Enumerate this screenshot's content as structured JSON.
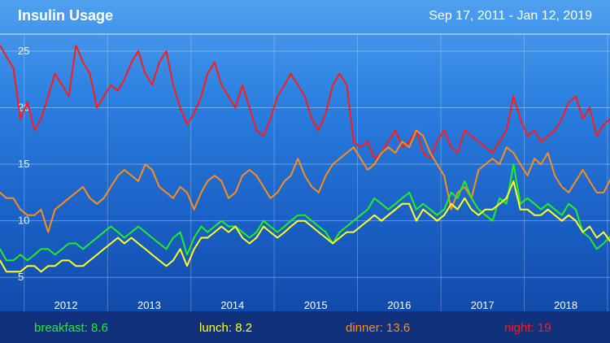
{
  "header": {
    "title": "Insulin Usage",
    "date_range": "Sep 17, 2011 - Jan 12, 2019"
  },
  "legend": {
    "breakfast": "breakfast: 8.6",
    "lunch": "lunch: 8.2",
    "dinner": "dinner: 13.6",
    "night": "night: 19"
  },
  "colors": {
    "breakfast": "#22ee22",
    "lunch": "#ffff22",
    "dinner": "#ff8c1a",
    "night": "#ff1a1a",
    "grid": "#ffffff"
  },
  "chart_data": {
    "type": "line",
    "title": "Insulin Usage",
    "xlim": [
      "2011-09-17",
      "2019-01-12"
    ],
    "ylim": [
      2,
      26.5
    ],
    "y_ticks": [
      "5",
      "10",
      "15",
      "20",
      "25"
    ],
    "x_ticks": [
      "2012",
      "2013",
      "2014",
      "2015",
      "2016",
      "2017",
      "2018"
    ],
    "grid": true,
    "legend_position": "bottom",
    "series": [
      {
        "name": "night",
        "x": [
          "2011-09-17",
          "2011-10-15",
          "2011-11-15",
          "2011-12-15",
          "2012-01-15",
          "2012-02-15",
          "2012-03-15",
          "2012-04-15",
          "2012-05-15",
          "2012-06-15",
          "2012-07-15",
          "2012-08-15",
          "2012-09-15",
          "2012-10-15",
          "2012-11-15",
          "2012-12-15",
          "2013-01-15",
          "2013-02-15",
          "2013-03-15",
          "2013-04-15",
          "2013-05-15",
          "2013-06-15",
          "2013-07-15",
          "2013-08-15",
          "2013-09-15",
          "2013-10-15",
          "2013-11-15",
          "2013-12-15",
          "2014-01-15",
          "2014-02-15",
          "2014-03-15",
          "2014-04-15",
          "2014-05-15",
          "2014-06-15",
          "2014-07-15",
          "2014-08-15",
          "2014-09-15",
          "2014-10-15",
          "2014-11-15",
          "2014-12-15",
          "2015-01-15",
          "2015-02-15",
          "2015-03-15",
          "2015-04-15",
          "2015-05-15",
          "2015-06-15",
          "2015-07-15",
          "2015-08-15",
          "2015-09-15",
          "2015-10-15",
          "2015-11-15",
          "2015-12-15",
          "2016-01-15",
          "2016-02-15",
          "2016-03-15",
          "2016-04-15",
          "2016-05-15",
          "2016-06-15",
          "2016-07-15",
          "2016-08-15",
          "2016-09-15",
          "2016-10-15",
          "2016-11-15",
          "2016-12-15",
          "2017-01-15",
          "2017-02-15",
          "2017-03-15",
          "2017-04-15",
          "2017-05-15",
          "2017-06-15",
          "2017-07-15",
          "2017-08-15",
          "2017-09-15",
          "2017-10-15",
          "2017-11-15",
          "2017-12-15",
          "2018-01-15",
          "2018-02-15",
          "2018-03-15",
          "2018-04-15",
          "2018-05-15",
          "2018-06-15",
          "2018-07-15",
          "2018-08-15",
          "2018-09-15",
          "2018-10-15",
          "2018-11-15",
          "2018-12-15",
          "2019-01-12"
        ],
        "y": [
          25.5,
          24.5,
          23.5,
          19,
          20.5,
          18,
          19,
          21,
          23,
          22,
          21,
          25.5,
          24,
          23,
          20,
          21,
          22,
          21.5,
          22.5,
          24,
          25,
          23,
          22,
          24,
          25,
          22,
          20,
          18.5,
          19.5,
          21,
          23,
          24,
          22,
          21,
          20,
          22,
          20,
          18,
          17.5,
          19,
          21,
          22,
          23,
          22,
          21,
          19,
          18,
          19.5,
          22,
          23,
          22,
          17,
          16.5,
          17,
          15.5,
          16,
          17,
          18,
          16.5,
          17,
          18,
          16,
          15.5,
          17,
          18,
          16.5,
          16,
          18,
          17.5,
          17,
          16.5,
          16,
          17,
          18,
          21,
          19,
          17.5,
          18,
          17,
          17.5,
          18,
          19,
          20.5,
          21,
          19,
          20,
          17.5,
          18.5,
          19
        ]
      },
      {
        "name": "dinner",
        "x": [
          "2011-09-17",
          "2011-10-15",
          "2011-11-15",
          "2011-12-15",
          "2012-01-15",
          "2012-02-15",
          "2012-03-15",
          "2012-04-15",
          "2012-05-15",
          "2012-06-15",
          "2012-07-15",
          "2012-08-15",
          "2012-09-15",
          "2012-10-15",
          "2012-11-15",
          "2012-12-15",
          "2013-01-15",
          "2013-02-15",
          "2013-03-15",
          "2013-04-15",
          "2013-05-15",
          "2013-06-15",
          "2013-07-15",
          "2013-08-15",
          "2013-09-15",
          "2013-10-15",
          "2013-11-15",
          "2013-12-15",
          "2014-01-15",
          "2014-02-15",
          "2014-03-15",
          "2014-04-15",
          "2014-05-15",
          "2014-06-15",
          "2014-07-15",
          "2014-08-15",
          "2014-09-15",
          "2014-10-15",
          "2014-11-15",
          "2014-12-15",
          "2015-01-15",
          "2015-02-15",
          "2015-03-15",
          "2015-04-15",
          "2015-05-15",
          "2015-06-15",
          "2015-07-15",
          "2015-08-15",
          "2015-09-15",
          "2015-10-15",
          "2015-11-15",
          "2015-12-15",
          "2016-01-15",
          "2016-02-15",
          "2016-03-15",
          "2016-04-15",
          "2016-05-15",
          "2016-06-15",
          "2016-07-15",
          "2016-08-15",
          "2016-09-15",
          "2016-10-15",
          "2016-11-15",
          "2016-12-15",
          "2017-01-15",
          "2017-02-15",
          "2017-03-15",
          "2017-04-15",
          "2017-05-15",
          "2017-06-15",
          "2017-07-15",
          "2017-08-15",
          "2017-09-15",
          "2017-10-15",
          "2017-11-15",
          "2017-12-15",
          "2018-01-15",
          "2018-02-15",
          "2018-03-15",
          "2018-04-15",
          "2018-05-15",
          "2018-06-15",
          "2018-07-15",
          "2018-08-15",
          "2018-09-15",
          "2018-10-15",
          "2018-11-15",
          "2018-12-15",
          "2019-01-12"
        ],
        "y": [
          12.5,
          12,
          12,
          11,
          10.5,
          10.5,
          11,
          9,
          11,
          11.5,
          12,
          12.5,
          13,
          12,
          11.5,
          12,
          13,
          14,
          14.5,
          14,
          13.5,
          15,
          14.5,
          13,
          12.5,
          12,
          13,
          12.5,
          11,
          12.5,
          13.5,
          14,
          13.5,
          12,
          12.5,
          14,
          14.5,
          14,
          13,
          12,
          12.5,
          13.5,
          14,
          15.5,
          14,
          13,
          12.5,
          14,
          15,
          15.5,
          16,
          16.5,
          15.5,
          14.5,
          15,
          16,
          16.5,
          16,
          17,
          16.5,
          18,
          17.5,
          16,
          15,
          14,
          11,
          12.5,
          13,
          12,
          14.5,
          15,
          15.5,
          15,
          16.5,
          16,
          15,
          14,
          15.5,
          15,
          16,
          14,
          13,
          12.5,
          13.5,
          14.5,
          13.5,
          12.5,
          12.5,
          13.6
        ]
      },
      {
        "name": "breakfast",
        "x": [
          "2011-09-17",
          "2011-10-15",
          "2011-11-15",
          "2011-12-15",
          "2012-01-15",
          "2012-02-15",
          "2012-03-15",
          "2012-04-15",
          "2012-05-15",
          "2012-06-15",
          "2012-07-15",
          "2012-08-15",
          "2012-09-15",
          "2012-10-15",
          "2012-11-15",
          "2012-12-15",
          "2013-01-15",
          "2013-02-15",
          "2013-03-15",
          "2013-04-15",
          "2013-05-15",
          "2013-06-15",
          "2013-07-15",
          "2013-08-15",
          "2013-09-15",
          "2013-10-15",
          "2013-11-15",
          "2013-12-15",
          "2014-01-15",
          "2014-02-15",
          "2014-03-15",
          "2014-04-15",
          "2014-05-15",
          "2014-06-15",
          "2014-07-15",
          "2014-08-15",
          "2014-09-15",
          "2014-10-15",
          "2014-11-15",
          "2014-12-15",
          "2015-01-15",
          "2015-02-15",
          "2015-03-15",
          "2015-04-15",
          "2015-05-15",
          "2015-06-15",
          "2015-07-15",
          "2015-08-15",
          "2015-09-15",
          "2015-10-15",
          "2015-11-15",
          "2015-12-15",
          "2016-01-15",
          "2016-02-15",
          "2016-03-15",
          "2016-04-15",
          "2016-05-15",
          "2016-06-15",
          "2016-07-15",
          "2016-08-15",
          "2016-09-15",
          "2016-10-15",
          "2016-11-15",
          "2016-12-15",
          "2017-01-15",
          "2017-02-15",
          "2017-03-15",
          "2017-04-15",
          "2017-05-15",
          "2017-06-15",
          "2017-07-15",
          "2017-08-15",
          "2017-09-15",
          "2017-10-15",
          "2017-11-15",
          "2017-12-15",
          "2018-01-15",
          "2018-02-15",
          "2018-03-15",
          "2018-04-15",
          "2018-05-15",
          "2018-06-15",
          "2018-07-15",
          "2018-08-15",
          "2018-09-15",
          "2018-10-15",
          "2018-11-15",
          "2018-12-15",
          "2019-01-12"
        ],
        "y": [
          7.5,
          6.5,
          6.5,
          7,
          6.5,
          7,
          7.5,
          7.5,
          7,
          7.5,
          8,
          8,
          7.5,
          8,
          8.5,
          9,
          9.5,
          9,
          8.5,
          9,
          9.5,
          9,
          8.5,
          8,
          7.5,
          8.5,
          9,
          7,
          8.5,
          9.5,
          9,
          9.5,
          10,
          9.5,
          9.5,
          9,
          8.5,
          9,
          10,
          9.5,
          9,
          9.5,
          10,
          10.5,
          10.5,
          10,
          9.5,
          9,
          8,
          9,
          9.5,
          10,
          10.5,
          11,
          12,
          11.5,
          11,
          11.5,
          12,
          12.5,
          11,
          11.5,
          11,
          10.5,
          11,
          12.5,
          12,
          13.5,
          12,
          11,
          10.5,
          10,
          12,
          11.5,
          15,
          11.5,
          12,
          11.5,
          11,
          11.5,
          11,
          10.5,
          11.5,
          11,
          9,
          8.5,
          7.5,
          8,
          8.6
        ]
      },
      {
        "name": "lunch",
        "x": [
          "2011-09-17",
          "2011-10-15",
          "2011-11-15",
          "2011-12-15",
          "2012-01-15",
          "2012-02-15",
          "2012-03-15",
          "2012-04-15",
          "2012-05-15",
          "2012-06-15",
          "2012-07-15",
          "2012-08-15",
          "2012-09-15",
          "2012-10-15",
          "2012-11-15",
          "2012-12-15",
          "2013-01-15",
          "2013-02-15",
          "2013-03-15",
          "2013-04-15",
          "2013-05-15",
          "2013-06-15",
          "2013-07-15",
          "2013-08-15",
          "2013-09-15",
          "2013-10-15",
          "2013-11-15",
          "2013-12-15",
          "2014-01-15",
          "2014-02-15",
          "2014-03-15",
          "2014-04-15",
          "2014-05-15",
          "2014-06-15",
          "2014-07-15",
          "2014-08-15",
          "2014-09-15",
          "2014-10-15",
          "2014-11-15",
          "2014-12-15",
          "2015-01-15",
          "2015-02-15",
          "2015-03-15",
          "2015-04-15",
          "2015-05-15",
          "2015-06-15",
          "2015-07-15",
          "2015-08-15",
          "2015-09-15",
          "2015-10-15",
          "2015-11-15",
          "2015-12-15",
          "2016-01-15",
          "2016-02-15",
          "2016-03-15",
          "2016-04-15",
          "2016-05-15",
          "2016-06-15",
          "2016-07-15",
          "2016-08-15",
          "2016-09-15",
          "2016-10-15",
          "2016-11-15",
          "2016-12-15",
          "2017-01-15",
          "2017-02-15",
          "2017-03-15",
          "2017-04-15",
          "2017-05-15",
          "2017-06-15",
          "2017-07-15",
          "2017-08-15",
          "2017-09-15",
          "2017-10-15",
          "2017-11-15",
          "2017-12-15",
          "2018-01-15",
          "2018-02-15",
          "2018-03-15",
          "2018-04-15",
          "2018-05-15",
          "2018-06-15",
          "2018-07-15",
          "2018-08-15",
          "2018-09-15",
          "2018-10-15",
          "2018-11-15",
          "2018-12-15",
          "2019-01-12"
        ],
        "y": [
          6.5,
          5.5,
          5.5,
          5.5,
          6,
          6,
          5.5,
          6,
          6,
          6.5,
          6.5,
          6,
          6,
          6.5,
          7,
          7.5,
          8,
          8.5,
          8,
          8.5,
          8,
          7.5,
          7,
          6.5,
          6,
          6.5,
          7.5,
          6,
          7.5,
          8.5,
          8.5,
          9,
          9.5,
          9,
          9.5,
          8.5,
          8,
          8.5,
          9.5,
          9,
          8.5,
          9,
          9.5,
          10,
          10,
          9.5,
          9,
          8.5,
          8,
          8.5,
          9,
          9,
          9.5,
          10,
          10.5,
          10,
          10.5,
          11,
          11.5,
          11.5,
          10,
          11,
          10.5,
          10,
          10.5,
          11.5,
          11,
          12,
          11,
          10.5,
          11,
          11,
          11.5,
          12,
          13.5,
          11,
          11,
          10.5,
          10.5,
          11,
          10.5,
          10,
          10.5,
          10,
          9,
          9.5,
          8.5,
          9,
          8.2
        ]
      }
    ]
  }
}
